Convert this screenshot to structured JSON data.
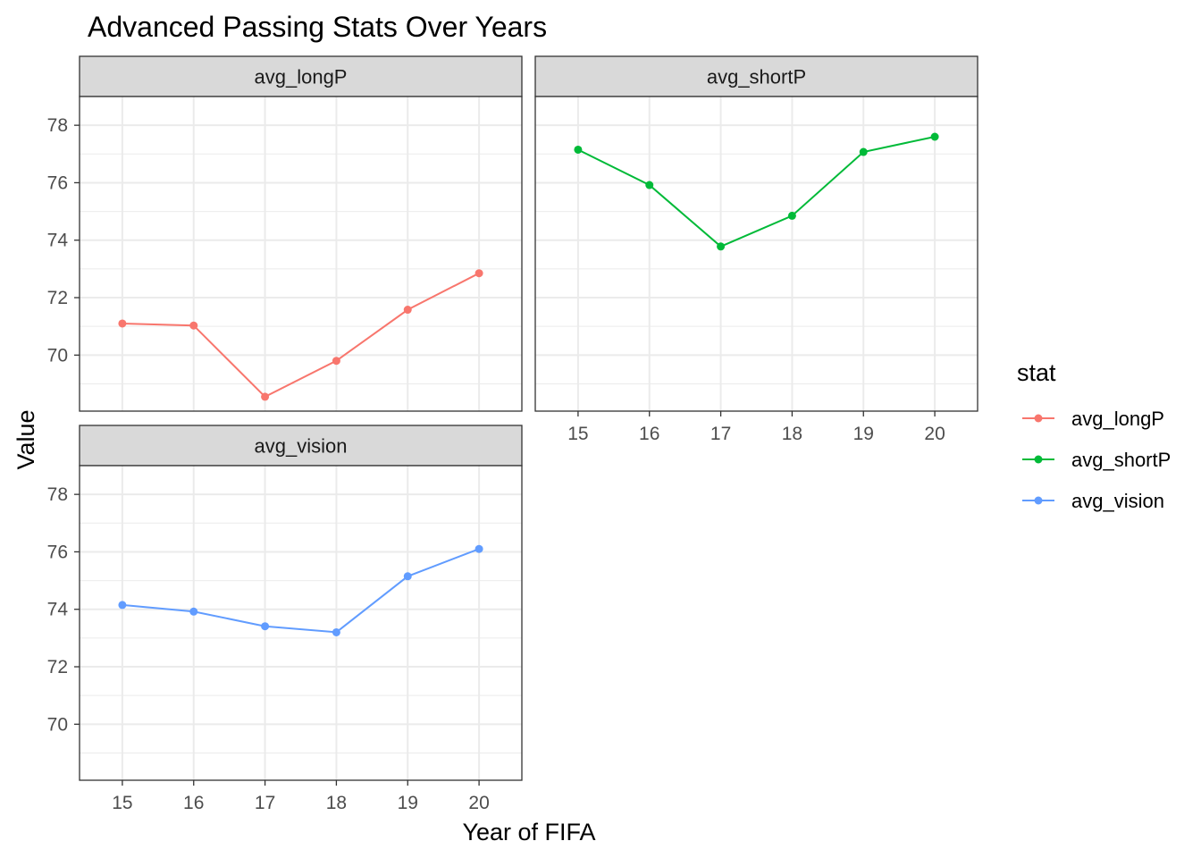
{
  "chart_data": {
    "type": "line",
    "title": "Advanced Passing Stats Over Years",
    "xlabel": "Year of FIFA",
    "ylabel": "Value",
    "x": [
      15,
      16,
      17,
      18,
      19,
      20
    ],
    "xlim": [
      14.4,
      20.6
    ],
    "ylim": [
      68.05,
      79.0
    ],
    "y_ticks": [
      70,
      72,
      74,
      76,
      78
    ],
    "grid": true,
    "legend": {
      "title": "stat",
      "placement": "right"
    },
    "facets": [
      {
        "name": "avg_longP",
        "color": "#f8766d",
        "values": [
          71.1,
          71.03,
          68.55,
          69.8,
          71.58,
          72.85
        ]
      },
      {
        "name": "avg_shortP",
        "color": "#00ba38",
        "values": [
          77.15,
          75.92,
          73.78,
          74.85,
          77.07,
          77.6
        ]
      },
      {
        "name": "avg_vision",
        "color": "#619cff",
        "values": [
          74.15,
          73.92,
          73.41,
          73.2,
          75.15,
          76.1
        ]
      }
    ]
  }
}
